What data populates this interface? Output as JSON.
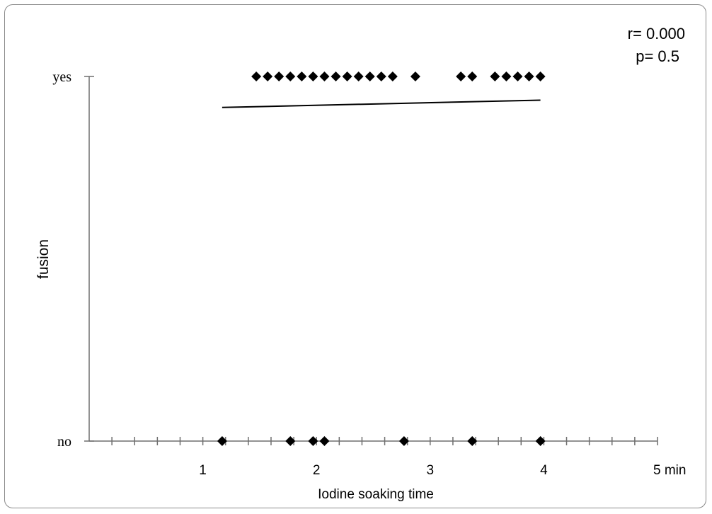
{
  "chart_data": {
    "type": "scatter",
    "xlabel": "Iodine soaking time",
    "ylabel": "fusion",
    "x_unit_label": "min",
    "xlim": [
      0,
      5
    ],
    "x_ticks": [
      1,
      2,
      3,
      4,
      5
    ],
    "x_tick_labels": [
      "1",
      "2",
      "3",
      "4",
      "5 min"
    ],
    "x_minor_step": 0.2,
    "y_categories": [
      "no",
      "yes"
    ],
    "grid": false,
    "marker": "diamond",
    "color": "#000000",
    "series": [
      {
        "points_yes": [
          1.47,
          1.57,
          1.67,
          1.77,
          1.87,
          1.97,
          2.07,
          2.17,
          2.27,
          2.37,
          2.47,
          2.57,
          2.67,
          2.87,
          3.27,
          3.37,
          3.57,
          3.67,
          3.77,
          3.87,
          3.97
        ],
        "points_no": [
          1.17,
          1.77,
          1.97,
          2.07,
          2.77,
          3.37,
          3.97
        ]
      }
    ],
    "trendline": {
      "x": [
        1.17,
        3.97
      ],
      "y": [
        0.915,
        0.935
      ]
    },
    "annotation": {
      "r_text": "r= 0.000",
      "p_text": "p= 0.5"
    }
  }
}
